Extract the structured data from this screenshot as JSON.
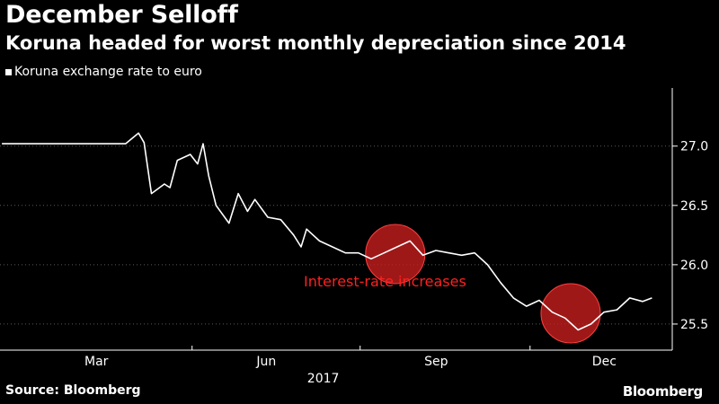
{
  "header": {
    "title": "December Selloff",
    "subtitle": "Koruna headed for worst monthly depreciation since 2014"
  },
  "legend": {
    "label": "Koruna exchange rate to euro"
  },
  "footer": {
    "source": "Source: Bloomberg",
    "brand": "Bloomberg"
  },
  "chart_data": {
    "type": "line",
    "title": "December Selloff",
    "subtitle": "Koruna headed for worst monthly depreciation since 2014",
    "series": [
      {
        "name": "Koruna exchange rate to euro",
        "color": "#ffffff",
        "x": [
          "2017-01-02",
          "2017-01-09",
          "2017-01-16",
          "2017-01-23",
          "2017-01-30",
          "2017-02-06",
          "2017-02-13",
          "2017-02-20",
          "2017-02-27",
          "2017-03-06",
          "2017-03-10",
          "2017-03-17",
          "2017-03-20",
          "2017-03-24",
          "2017-03-31",
          "2017-04-03",
          "2017-04-07",
          "2017-04-14",
          "2017-04-18",
          "2017-04-21",
          "2017-04-24",
          "2017-04-28",
          "2017-05-05",
          "2017-05-10",
          "2017-05-15",
          "2017-05-19",
          "2017-05-26",
          "2017-06-02",
          "2017-06-09",
          "2017-06-13",
          "2017-06-16",
          "2017-06-23",
          "2017-06-30",
          "2017-07-07",
          "2017-07-14",
          "2017-07-21",
          "2017-07-28",
          "2017-08-04",
          "2017-08-11",
          "2017-08-18",
          "2017-08-25",
          "2017-09-01",
          "2017-09-08",
          "2017-09-15",
          "2017-09-22",
          "2017-09-29",
          "2017-10-06",
          "2017-10-13",
          "2017-10-20",
          "2017-10-27",
          "2017-11-03",
          "2017-11-10",
          "2017-11-17",
          "2017-11-24",
          "2017-12-01",
          "2017-12-08",
          "2017-12-15",
          "2017-12-20"
        ],
        "y": [
          27.02,
          27.02,
          27.02,
          27.02,
          27.02,
          27.02,
          27.02,
          27.02,
          27.02,
          27.02,
          27.02,
          27.11,
          27.03,
          26.6,
          26.68,
          26.65,
          26.88,
          26.93,
          26.85,
          27.02,
          26.75,
          26.5,
          26.35,
          26.6,
          26.45,
          26.55,
          26.4,
          26.38,
          26.25,
          26.15,
          26.3,
          26.2,
          26.15,
          26.1,
          26.1,
          26.05,
          26.1,
          26.15,
          26.2,
          26.08,
          26.12,
          26.1,
          26.08,
          26.1,
          26.0,
          25.85,
          25.72,
          25.65,
          25.7,
          25.6,
          25.55,
          25.45,
          25.5,
          25.6,
          25.62,
          25.72,
          25.69,
          25.72
        ]
      }
    ],
    "xlabel": "2017",
    "x_tick_labels": [
      "Mar",
      "Jun",
      "Sep",
      "Dec"
    ],
    "y_tick_labels": [
      "27.0",
      "26.5",
      "26.0",
      "25.5"
    ],
    "ylim": [
      25.28,
      27.49
    ],
    "axis_side": "right",
    "grid": "horizontal dotted",
    "annotations": [
      {
        "text": "Interest-rate increases",
        "color": "#ff2020"
      },
      {
        "marker": "circle",
        "date": "2017-08-03",
        "value": 26.09,
        "color": "#cc1f1f"
      },
      {
        "marker": "circle",
        "date": "2017-11-06",
        "value": 25.59,
        "color": "#cc1f1f"
      }
    ]
  }
}
